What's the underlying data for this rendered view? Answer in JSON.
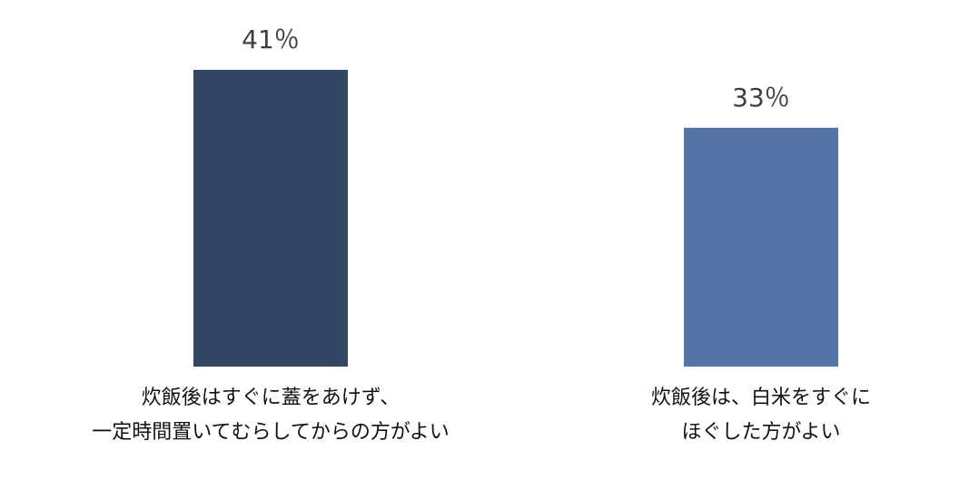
{
  "chart_data": {
    "type": "bar",
    "categories": [
      [
        "炊飯後はすぐに蓋をあけず、",
        "一定時間置いてむらしてからの方がよい"
      ],
      [
        "炊飯後は、白米をすぐに",
        "ほぐした方がよい"
      ]
    ],
    "values": [
      41,
      33
    ],
    "value_labels": [
      "41％",
      "33％"
    ],
    "colors": [
      "#334663",
      "#5474A8"
    ],
    "title": "",
    "xlabel": "",
    "ylabel": "",
    "ylim": [
      0,
      41
    ],
    "grid": false,
    "legend": "none"
  }
}
